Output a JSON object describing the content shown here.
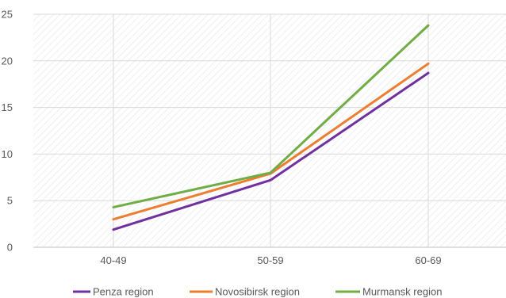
{
  "chart_data": {
    "type": "line",
    "title": "",
    "xlabel": "",
    "ylabel": "",
    "categories": [
      "40-49",
      "50-59",
      "60-69"
    ],
    "ylim": [
      0,
      25
    ],
    "yticks": [
      0,
      5,
      10,
      15,
      20,
      25
    ],
    "grid": true,
    "legend_position": "bottom",
    "series": [
      {
        "name": "Penza region",
        "color": "#7030a0",
        "values": [
          1.9,
          7.2,
          18.7
        ]
      },
      {
        "name": "Novosibirsk region",
        "color": "#ed7d31",
        "values": [
          3.0,
          7.9,
          19.7
        ]
      },
      {
        "name": "Murmansk region",
        "color": "#70ad47",
        "values": [
          4.3,
          8.0,
          23.8
        ]
      }
    ]
  }
}
